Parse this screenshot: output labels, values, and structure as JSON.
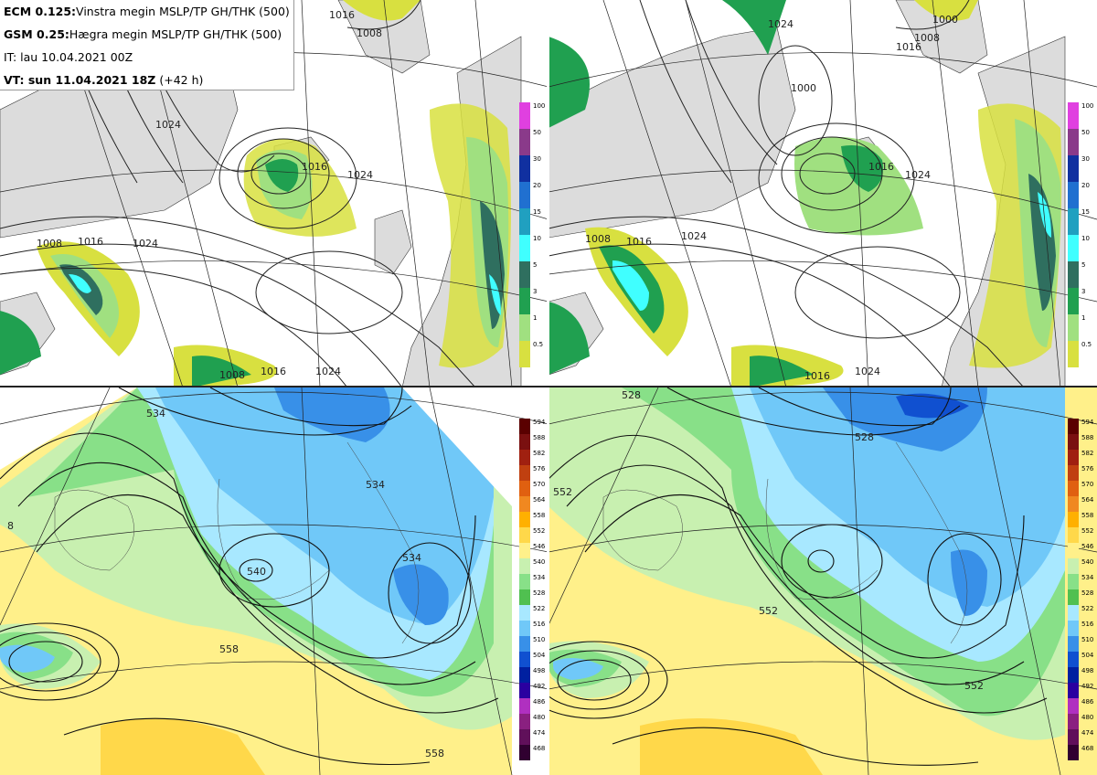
{
  "info": {
    "line1_bold": "ECM 0.125:",
    "line1_text": "Vinstra megin MSLP/TP GH/THK (500)",
    "line2_bold": "GSM 0.25:",
    "line2_text": "Hægra megin MSLP/TP GH/THK (500)",
    "line3": "IT: lau 10.04.2021 00Z",
    "line4_bold": "VT: sun 11.04.2021 18Z",
    "line4_text": "(+42 h)"
  },
  "precip_legend": {
    "labels": [
      "100",
      "50",
      "30",
      "20",
      "15",
      "10",
      "5",
      "3",
      "1",
      "0.5"
    ],
    "colors": [
      "#e040e0",
      "#8a3a8a",
      "#1030a0",
      "#2070d0",
      "#20a0c0",
      "#40ffff",
      "#2f6f5f",
      "#20a050",
      "#a0e080",
      "#d8e040"
    ]
  },
  "thk_legend": {
    "labels": [
      "594",
      "588",
      "582",
      "576",
      "570",
      "564",
      "558",
      "552",
      "546",
      "540",
      "534",
      "528",
      "522",
      "516",
      "510",
      "504",
      "498",
      "492",
      "486",
      "480",
      "474",
      "468"
    ],
    "colors": [
      "#5a0000",
      "#7a1010",
      "#a02010",
      "#c04010",
      "#e06010",
      "#f08820",
      "#ffb000",
      "#ffd84a",
      "#fff08a",
      "#c8f0b0",
      "#88e088",
      "#50c050",
      "#a8e8ff",
      "#70c8f8",
      "#3890e8",
      "#1050d0",
      "#0020a0",
      "#2a00a0",
      "#b030c0",
      "#8a2080",
      "#60105a",
      "#300030"
    ]
  },
  "contour_labels": {
    "top_left": [
      "1016",
      "1008",
      "1024",
      "1024",
      "1016",
      "1008",
      "1024",
      "1008",
      "1016",
      "1024",
      "1016"
    ],
    "top_right": [
      "1016",
      "1000",
      "1008",
      "1024",
      "1016",
      "1024",
      "1008",
      "1016",
      "1024",
      "1024",
      "1016",
      "1000"
    ],
    "bottom_left": [
      "534",
      "534",
      "540",
      "558",
      "534",
      "558",
      "8"
    ],
    "bottom_right": [
      "528",
      "528",
      "552",
      "552",
      "552"
    ]
  },
  "icons": {
    "coastline": "coastline-icon",
    "graticule": "graticule-icon"
  }
}
